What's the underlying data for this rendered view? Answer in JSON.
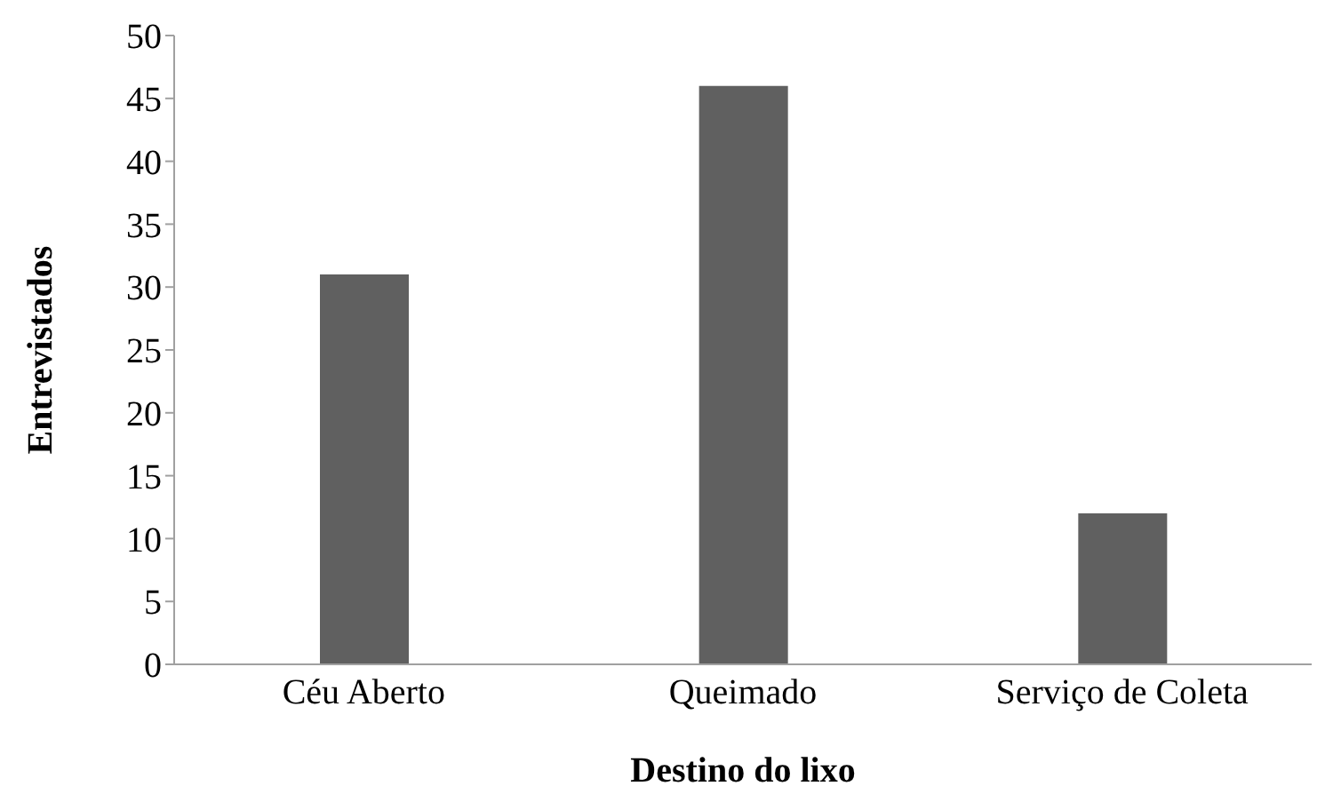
{
  "chart_data": {
    "type": "bar",
    "xlabel": "Destino do lixo",
    "ylabel": "Entrevistados",
    "categories": [
      "Céu Aberto",
      "Queimado",
      "Serviço de Coleta"
    ],
    "values": [
      31,
      46,
      12
    ],
    "color": "#606060",
    "ylim": [
      0,
      50
    ],
    "yticks": [
      0,
      5,
      10,
      15,
      20,
      25,
      30,
      35,
      40,
      45,
      50
    ],
    "grid": false,
    "legend": false
  }
}
